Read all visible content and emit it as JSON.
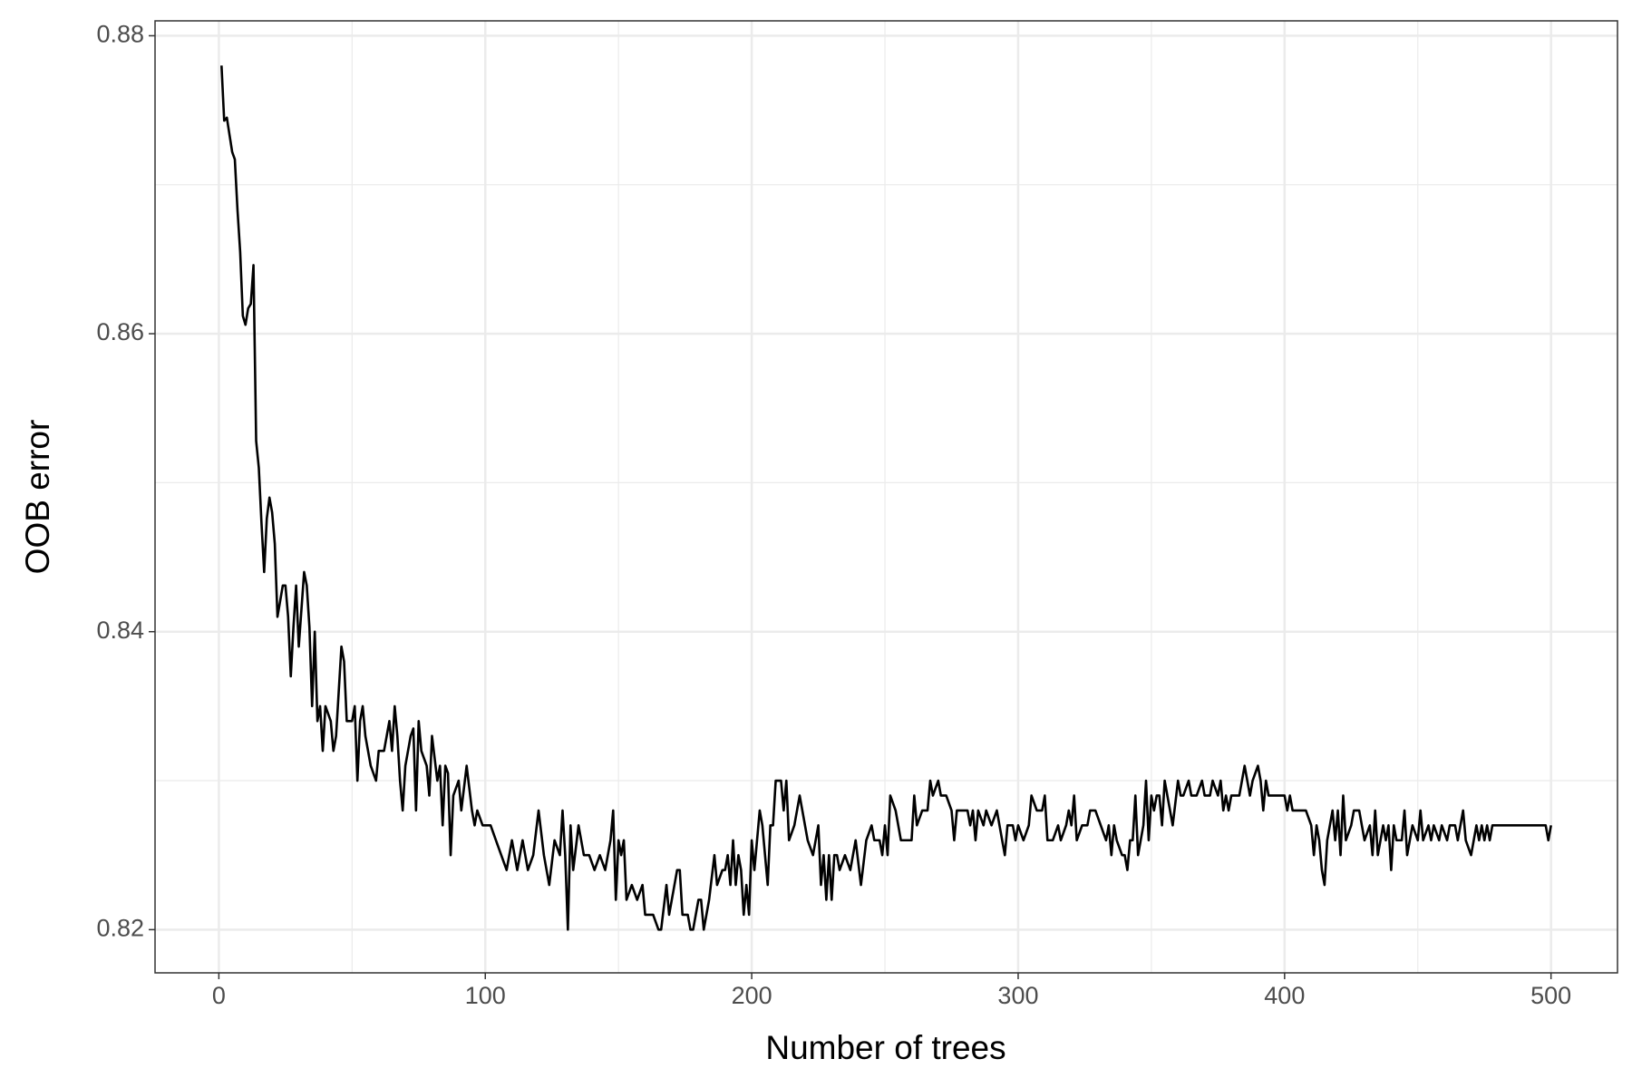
{
  "chart_data": {
    "type": "line",
    "x_label": "Number of trees",
    "y_label": "OOB error",
    "x": [
      1,
      2,
      3,
      5,
      6,
      7,
      8,
      9,
      10,
      11,
      12,
      13,
      14,
      15,
      16,
      17,
      18,
      19,
      20,
      21,
      22,
      24,
      25,
      26,
      27,
      28,
      29,
      30,
      32,
      33,
      34,
      35,
      36,
      37,
      38,
      39,
      40,
      42,
      43,
      44,
      46,
      47,
      48,
      50,
      51,
      52,
      53,
      54,
      55,
      57,
      59,
      60,
      62,
      64,
      65,
      66,
      67,
      68,
      69,
      70,
      72,
      73,
      74,
      75,
      76,
      78,
      79,
      80,
      82,
      83,
      84,
      85,
      86,
      87,
      88,
      90,
      91,
      93,
      95,
      96,
      97,
      99,
      100,
      102,
      104,
      106,
      108,
      110,
      112,
      114,
      116,
      118,
      120,
      122,
      124,
      126,
      128,
      129,
      130,
      131,
      132,
      133,
      135,
      137,
      139,
      141,
      143,
      145,
      147,
      148,
      149,
      150,
      151,
      152,
      153,
      155,
      157,
      159,
      160,
      163,
      165,
      166,
      168,
      169,
      171,
      172,
      173,
      174,
      176,
      177,
      178,
      180,
      181,
      182,
      184,
      186,
      187,
      189,
      190,
      191,
      192,
      193,
      194,
      195,
      196,
      197,
      198,
      199,
      200,
      201,
      203,
      204,
      206,
      207,
      208,
      209,
      211,
      212,
      213,
      214,
      216,
      218,
      219,
      221,
      223,
      225,
      226,
      227,
      228,
      229,
      230,
      231,
      232,
      233,
      235,
      237,
      239,
      241,
      243,
      245,
      246,
      248,
      249,
      250,
      251,
      252,
      254,
      256,
      258,
      260,
      261,
      262,
      264,
      266,
      267,
      268,
      270,
      271,
      273,
      275,
      276,
      277,
      279,
      281,
      282,
      283,
      284,
      285,
      287,
      288,
      290,
      292,
      294,
      295,
      296,
      298,
      299,
      300,
      302,
      304,
      305,
      307,
      309,
      310,
      311,
      313,
      315,
      316,
      318,
      319,
      320,
      321,
      322,
      324,
      326,
      327,
      329,
      331,
      333,
      334,
      335,
      336,
      337,
      339,
      340,
      341,
      342,
      343,
      344,
      345,
      347,
      348,
      349,
      350,
      351,
      352,
      353,
      354,
      355,
      357,
      358,
      360,
      361,
      362,
      364,
      365,
      367,
      369,
      370,
      372,
      373,
      375,
      376,
      377,
      378,
      379,
      380,
      382,
      383,
      385,
      386,
      387,
      388,
      390,
      391,
      392,
      393,
      394,
      396,
      398,
      400,
      401,
      402,
      403,
      405,
      408,
      410,
      411,
      412,
      413,
      414,
      415,
      416,
      417,
      418,
      419,
      420,
      421,
      422,
      423,
      425,
      426,
      428,
      429,
      430,
      432,
      433,
      434,
      435,
      437,
      438,
      439,
      440,
      441,
      442,
      444,
      445,
      446,
      447,
      448,
      450,
      451,
      452,
      454,
      455,
      456,
      458,
      459,
      461,
      462,
      464,
      465,
      466,
      467,
      468,
      470,
      471,
      472,
      473,
      474,
      475,
      476,
      477,
      478,
      480,
      485,
      490,
      495,
      498,
      499,
      500
    ],
    "values": [
      0.878,
      0.8743,
      0.8745,
      0.8722,
      0.8717,
      0.8683,
      0.8655,
      0.8612,
      0.8606,
      0.8617,
      0.862,
      0.8646,
      0.8528,
      0.851,
      0.8473,
      0.844,
      0.8476,
      0.849,
      0.848,
      0.8459,
      0.841,
      0.8431,
      0.8431,
      0.841,
      0.837,
      0.8403,
      0.8431,
      0.839,
      0.844,
      0.8431,
      0.8403,
      0.835,
      0.84,
      0.834,
      0.835,
      0.832,
      0.835,
      0.834,
      0.832,
      0.833,
      0.839,
      0.838,
      0.834,
      0.834,
      0.835,
      0.83,
      0.834,
      0.835,
      0.833,
      0.831,
      0.83,
      0.832,
      0.832,
      0.834,
      0.832,
      0.835,
      0.833,
      0.83,
      0.828,
      0.831,
      0.833,
      0.8335,
      0.828,
      0.834,
      0.832,
      0.831,
      0.829,
      0.833,
      0.83,
      0.831,
      0.827,
      0.831,
      0.8305,
      0.825,
      0.829,
      0.83,
      0.828,
      0.831,
      0.828,
      0.827,
      0.828,
      0.827,
      0.827,
      0.827,
      0.826,
      0.825,
      0.824,
      0.826,
      0.824,
      0.826,
      0.824,
      0.825,
      0.828,
      0.825,
      0.823,
      0.826,
      0.825,
      0.828,
      0.825,
      0.82,
      0.827,
      0.824,
      0.827,
      0.825,
      0.825,
      0.824,
      0.825,
      0.824,
      0.826,
      0.828,
      0.822,
      0.826,
      0.825,
      0.826,
      0.822,
      0.823,
      0.822,
      0.823,
      0.821,
      0.821,
      0.82,
      0.82,
      0.823,
      0.821,
      0.823,
      0.824,
      0.824,
      0.821,
      0.821,
      0.82,
      0.82,
      0.822,
      0.822,
      0.82,
      0.822,
      0.825,
      0.823,
      0.824,
      0.824,
      0.825,
      0.823,
      0.826,
      0.823,
      0.825,
      0.824,
      0.821,
      0.823,
      0.821,
      0.826,
      0.824,
      0.828,
      0.827,
      0.823,
      0.827,
      0.827,
      0.83,
      0.83,
      0.828,
      0.83,
      0.826,
      0.827,
      0.829,
      0.828,
      0.826,
      0.825,
      0.827,
      0.823,
      0.825,
      0.822,
      0.825,
      0.822,
      0.825,
      0.825,
      0.824,
      0.825,
      0.824,
      0.826,
      0.823,
      0.826,
      0.827,
      0.826,
      0.826,
      0.825,
      0.827,
      0.825,
      0.829,
      0.828,
      0.826,
      0.826,
      0.826,
      0.829,
      0.827,
      0.828,
      0.828,
      0.83,
      0.829,
      0.83,
      0.829,
      0.829,
      0.828,
      0.826,
      0.828,
      0.828,
      0.828,
      0.827,
      0.828,
      0.826,
      0.828,
      0.827,
      0.828,
      0.827,
      0.828,
      0.826,
      0.825,
      0.827,
      0.827,
      0.826,
      0.827,
      0.826,
      0.827,
      0.829,
      0.828,
      0.828,
      0.829,
      0.826,
      0.826,
      0.827,
      0.826,
      0.827,
      0.828,
      0.827,
      0.829,
      0.826,
      0.827,
      0.827,
      0.828,
      0.828,
      0.827,
      0.826,
      0.827,
      0.825,
      0.827,
      0.826,
      0.825,
      0.825,
      0.824,
      0.826,
      0.826,
      0.829,
      0.825,
      0.827,
      0.83,
      0.826,
      0.829,
      0.828,
      0.829,
      0.829,
      0.827,
      0.83,
      0.828,
      0.827,
      0.83,
      0.829,
      0.829,
      0.83,
      0.829,
      0.829,
      0.83,
      0.829,
      0.829,
      0.83,
      0.829,
      0.83,
      0.828,
      0.829,
      0.828,
      0.829,
      0.829,
      0.829,
      0.831,
      0.83,
      0.829,
      0.83,
      0.831,
      0.83,
      0.828,
      0.83,
      0.829,
      0.829,
      0.829,
      0.829,
      0.828,
      0.829,
      0.828,
      0.828,
      0.828,
      0.827,
      0.825,
      0.827,
      0.826,
      0.824,
      0.823,
      0.826,
      0.827,
      0.828,
      0.826,
      0.828,
      0.825,
      0.829,
      0.826,
      0.827,
      0.828,
      0.828,
      0.827,
      0.826,
      0.827,
      0.825,
      0.828,
      0.825,
      0.827,
      0.826,
      0.827,
      0.824,
      0.827,
      0.826,
      0.826,
      0.828,
      0.825,
      0.826,
      0.827,
      0.826,
      0.828,
      0.826,
      0.827,
      0.826,
      0.827,
      0.826,
      0.827,
      0.826,
      0.827,
      0.827,
      0.826,
      0.827,
      0.828,
      0.826,
      0.825,
      0.826,
      0.827,
      0.826,
      0.827,
      0.826,
      0.827,
      0.826,
      0.827,
      0.827,
      0.827,
      0.827,
      0.827,
      0.827,
      0.826,
      0.827
    ],
    "color": "#000000",
    "xlim": [
      -23.95,
      524.95
    ],
    "ylim": [
      0.8171,
      0.881
    ],
    "xticks": [
      0,
      100,
      200,
      300,
      400,
      500
    ],
    "yticks": [
      0.82,
      0.84,
      0.86,
      0.88
    ],
    "xminor": [
      50,
      150,
      250,
      350,
      450
    ],
    "yminor": [
      0.83,
      0.85,
      0.87
    ],
    "grid": true
  }
}
